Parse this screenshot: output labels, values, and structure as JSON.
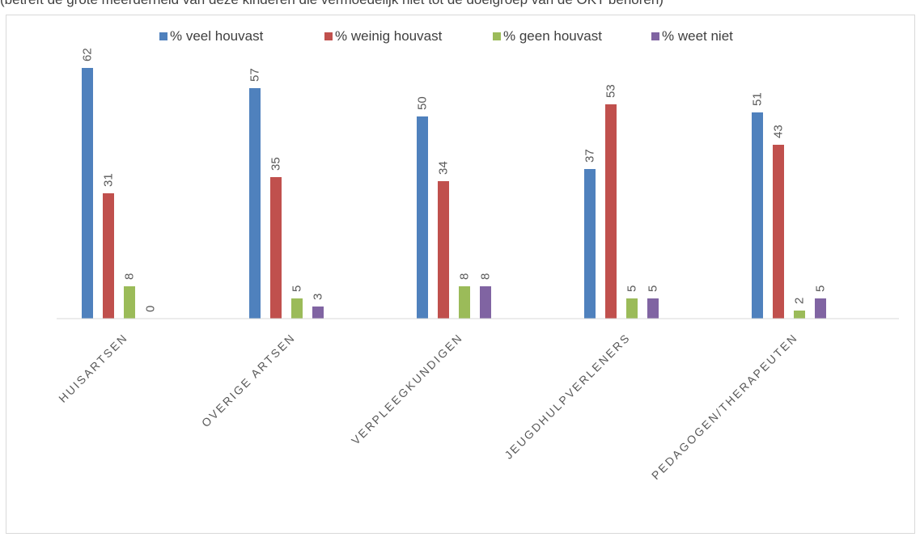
{
  "caption": "(betreft de grote meerderheid van deze kinderen die vermoedelijk niet tot de doelgroep van de OKT behoren)",
  "chart_data": {
    "type": "bar",
    "categories": [
      "HUISARTSEN",
      "OVERIGE ARTSEN",
      "VERPLEEGKUNDIGEN",
      "JEUGDHULPVERLENERS",
      "PEDAGOGEN/THERAPEUTEN"
    ],
    "series": [
      {
        "name": "% veel houvast",
        "color": "#4f81bd",
        "values": [
          62,
          57,
          50,
          37,
          51
        ]
      },
      {
        "name": "% weinig houvast",
        "color": "#c0504d",
        "values": [
          31,
          35,
          34,
          53,
          43
        ]
      },
      {
        "name": "% geen houvast",
        "color": "#9bbb59",
        "values": [
          8,
          5,
          8,
          5,
          2
        ]
      },
      {
        "name": "% weet niet",
        "color": "#8064a2",
        "values": [
          0,
          3,
          8,
          5,
          5
        ]
      }
    ],
    "ylim": [
      0,
      65
    ],
    "data_labels": true,
    "data_label_rotation": "vertical",
    "category_label_rotation": "diagonal",
    "legend_position": "top",
    "grid": false,
    "axis_color": "#d9d9d9"
  }
}
